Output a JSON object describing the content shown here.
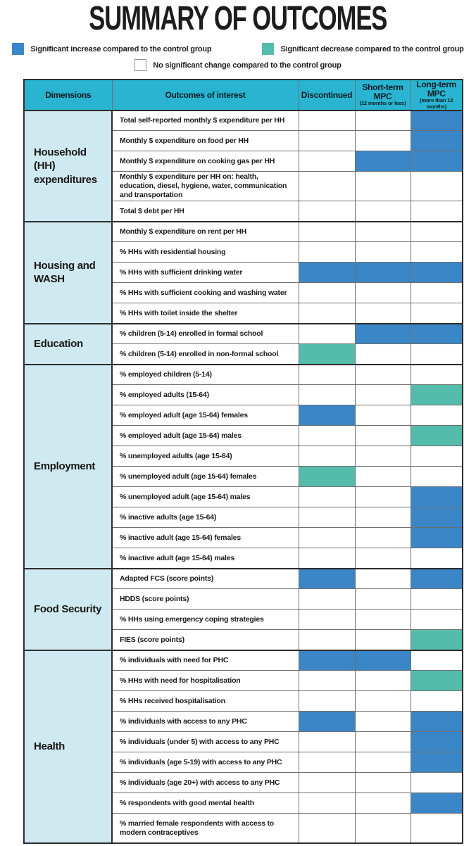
{
  "title": "SUMMARY OF OUTCOMES",
  "colors": {
    "increase": "#3a86c7",
    "decrease": "#54bcab",
    "none": "#ffffff",
    "header_bg": "#29b5d1",
    "dimension_bg": "#cfe9f0"
  },
  "legend": [
    {
      "key": "increase",
      "label": "Significant increase compared to the control group"
    },
    {
      "key": "decrease",
      "label": "Significant decrease compared to the control group"
    },
    {
      "key": "none",
      "label": "No significant change compared to the control group"
    }
  ],
  "chart_data": {
    "type": "table",
    "title": "SUMMARY OF OUTCOMES",
    "value_meanings": {
      "increase": "Significant increase compared to the control group",
      "decrease": "Significant decrease compared to the control group",
      "none": "No significant change compared to the control group"
    },
    "columns": [
      {
        "label": "Dimensions",
        "sub": ""
      },
      {
        "label": "Outcomes of interest",
        "sub": ""
      },
      {
        "label": "Discontinued",
        "sub": ""
      },
      {
        "label": "Short-term MPC",
        "sub": "(12 months or less)"
      },
      {
        "label": "Long-term MPC",
        "sub": "(more than 12 months)"
      }
    ],
    "groups": [
      {
        "dimension": "Household (HH) expenditures",
        "rows": [
          {
            "outcome": "Total self-reported monthly $ expenditure per HH",
            "discontinued": "none",
            "short_term": "none",
            "long_term": "increase"
          },
          {
            "outcome": "Monthly $ expenditure on food per HH",
            "discontinued": "none",
            "short_term": "none",
            "long_term": "increase"
          },
          {
            "outcome": "Monthly $ expenditure on cooking gas per HH",
            "discontinued": "none",
            "short_term": "increase",
            "long_term": "increase"
          },
          {
            "outcome": "Monthly $ expenditure per HH on: health, education, diesel, hygiene, water, communication and transportation",
            "discontinued": "none",
            "short_term": "none",
            "long_term": "none",
            "tall": true
          },
          {
            "outcome": "Total $ debt per HH",
            "discontinued": "none",
            "short_term": "none",
            "long_term": "none"
          }
        ]
      },
      {
        "dimension": "Housing and WASH",
        "rows": [
          {
            "outcome": "Monthly $ expenditure on rent per HH",
            "discontinued": "none",
            "short_term": "none",
            "long_term": "none"
          },
          {
            "outcome": "% HHs with residential housing",
            "discontinued": "none",
            "short_term": "none",
            "long_term": "none"
          },
          {
            "outcome": "% HHs with sufficient drinking water",
            "discontinued": "increase",
            "short_term": "increase",
            "long_term": "increase"
          },
          {
            "outcome": "% HHs with sufficient cooking and washing water",
            "discontinued": "none",
            "short_term": "none",
            "long_term": "none"
          },
          {
            "outcome": "% HHs with toilet inside the shelter",
            "discontinued": "none",
            "short_term": "none",
            "long_term": "none"
          }
        ]
      },
      {
        "dimension": "Education",
        "rows": [
          {
            "outcome": "% children (5-14) enrolled in formal school",
            "discontinued": "none",
            "short_term": "increase",
            "long_term": "increase"
          },
          {
            "outcome": "% children (5-14) enrolled in non-formal school",
            "discontinued": "decrease",
            "short_term": "none",
            "long_term": "none"
          }
        ]
      },
      {
        "dimension": "Employment",
        "rows": [
          {
            "outcome": "% employed children (5-14)",
            "discontinued": "none",
            "short_term": "none",
            "long_term": "none"
          },
          {
            "outcome": "% employed adults (15-64)",
            "discontinued": "none",
            "short_term": "none",
            "long_term": "decrease"
          },
          {
            "outcome": "% employed adult (age 15-64) females",
            "discontinued": "increase",
            "short_term": "none",
            "long_term": "none"
          },
          {
            "outcome": "% employed adult (age 15-64) males",
            "discontinued": "none",
            "short_term": "none",
            "long_term": "decrease"
          },
          {
            "outcome": "% unemployed adults (age 15-64)",
            "discontinued": "none",
            "short_term": "none",
            "long_term": "none"
          },
          {
            "outcome": "% unemployed adult (age 15-64) females",
            "discontinued": "decrease",
            "short_term": "none",
            "long_term": "none"
          },
          {
            "outcome": "% unemployed adult (age 15-64) males",
            "discontinued": "none",
            "short_term": "none",
            "long_term": "increase"
          },
          {
            "outcome": "% inactive adults (age 15-64)",
            "discontinued": "none",
            "short_term": "none",
            "long_term": "increase"
          },
          {
            "outcome": "% inactive adult (age 15-64) females",
            "discontinued": "none",
            "short_term": "none",
            "long_term": "increase"
          },
          {
            "outcome": "% inactive adult (age 15-64) males",
            "discontinued": "none",
            "short_term": "none",
            "long_term": "none"
          }
        ]
      },
      {
        "dimension": "Food Security",
        "rows": [
          {
            "outcome": "Adapted FCS (score points)",
            "discontinued": "increase",
            "short_term": "none",
            "long_term": "increase"
          },
          {
            "outcome": "HDDS (score points)",
            "discontinued": "none",
            "short_term": "none",
            "long_term": "none"
          },
          {
            "outcome": "% HHs using emergency coping strategies",
            "discontinued": "none",
            "short_term": "none",
            "long_term": "none"
          },
          {
            "outcome": "FIES (score points)",
            "discontinued": "none",
            "short_term": "none",
            "long_term": "decrease"
          }
        ]
      },
      {
        "dimension": "Health",
        "rows": [
          {
            "outcome": "% individuals with need for PHC",
            "discontinued": "increase",
            "short_term": "increase",
            "long_term": "none"
          },
          {
            "outcome": "% HHs with need for hospitalisation",
            "discontinued": "none",
            "short_term": "none",
            "long_term": "decrease"
          },
          {
            "outcome": "% HHs received hospitalisation",
            "discontinued": "none",
            "short_term": "none",
            "long_term": "none"
          },
          {
            "outcome": "% individuals with access to any PHC",
            "discontinued": "increase",
            "short_term": "none",
            "long_term": "increase"
          },
          {
            "outcome": "% individuals (under 5) with access to any PHC",
            "discontinued": "none",
            "short_term": "none",
            "long_term": "increase"
          },
          {
            "outcome": "% individuals (age 5-19) with access to any PHC",
            "discontinued": "none",
            "short_term": "none",
            "long_term": "increase"
          },
          {
            "outcome": "% individuals (age 20+) with access to any PHC",
            "discontinued": "none",
            "short_term": "none",
            "long_term": "none"
          },
          {
            "outcome": "% respondents with good mental health",
            "discontinued": "none",
            "short_term": "none",
            "long_term": "increase"
          },
          {
            "outcome": "% married female respondents with access to modern contraceptives",
            "discontinued": "none",
            "short_term": "none",
            "long_term": "none",
            "tall": true
          }
        ]
      }
    ]
  }
}
